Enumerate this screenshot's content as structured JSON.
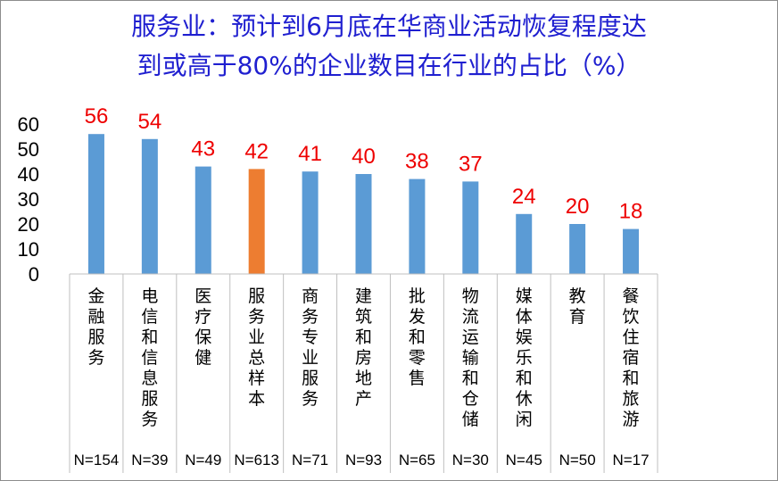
{
  "chart_data": {
    "type": "bar",
    "title_line1": "服务业：预计到6月底在华商业活动恢复程度达",
    "title_line2": "到或高于80%的企业数目在行业的占比（%）",
    "categories": [
      "金融服务",
      "电信和信息服务",
      "医疗保健",
      "服务业总样本",
      "商务专业服务",
      "建筑和房地产",
      "批发和零售",
      "物流运输和仓储",
      "媒体娱乐和休闲",
      "教育",
      "餐饮住宿和旅游"
    ],
    "values": [
      56,
      54,
      43,
      42,
      41,
      40,
      38,
      37,
      24,
      20,
      18
    ],
    "sample_sizes": [
      "N=154",
      "N=39",
      "N=49",
      "N=613",
      "N=71",
      "N=93",
      "N=65",
      "N=30",
      "N=45",
      "N=50",
      "N=17"
    ],
    "highlight_index": 3,
    "colors": {
      "bar": "#5b9bd5",
      "highlight": "#ed7d31",
      "value_label": "#ee0000",
      "title": "#1f1fd0"
    },
    "ylim": [
      0,
      60
    ],
    "yticks": [
      0,
      10,
      20,
      30,
      40,
      50,
      60
    ],
    "grid": false
  }
}
